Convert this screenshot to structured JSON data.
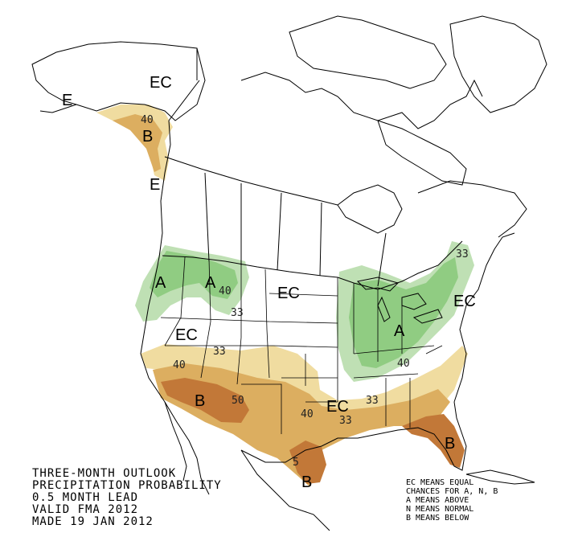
{
  "map": {
    "title_lines": [
      "THREE-MONTH OUTLOOK",
      "PRECIPITATION PROBABILITY",
      "0.5 MONTH LEAD",
      "VALID FMA 2012",
      "MADE 19 JAN 2012"
    ],
    "legend_lines": [
      "EC MEANS EQUAL",
      "CHANCES FOR A, N, B",
      "A MEANS ABOVE",
      "N MEANS NORMAL",
      "B MEANS BELOW"
    ],
    "region_labels": {
      "ec_alaska": "EC",
      "ec_aleutian": "E",
      "ec_bc": "E",
      "ec_plains": "EC",
      "ec_great_basin": "EC",
      "ec_texas": "EC",
      "ec_northeast": "EC",
      "a_pnw": "A",
      "a_rockies": "A",
      "a_ohio_valley": "A",
      "b_panhandle": "B",
      "b_southwest": "B",
      "b_texas": "B",
      "b_florida": "B"
    },
    "contour_labels": {
      "c40_alaska": "40",
      "c40_montana": "40",
      "c33_montana": "33",
      "c33_great_basin": "33",
      "c40_california": "40",
      "c50_arizona": "50",
      "c40_new_mexico": "40",
      "c33_texas": "33",
      "c33_tennessee": "33",
      "c40_ohio_valley": "40",
      "c33_maine": "33",
      "c5_texas_coast": "5"
    },
    "colors": {
      "above_33": "#bfe0b4",
      "above_40": "#90cc82",
      "below_33": "#f0dca0",
      "below_40": "#dcae60",
      "below_50": "#c27838",
      "below_60": "#9e4f26",
      "land_lines": "#000000"
    }
  }
}
